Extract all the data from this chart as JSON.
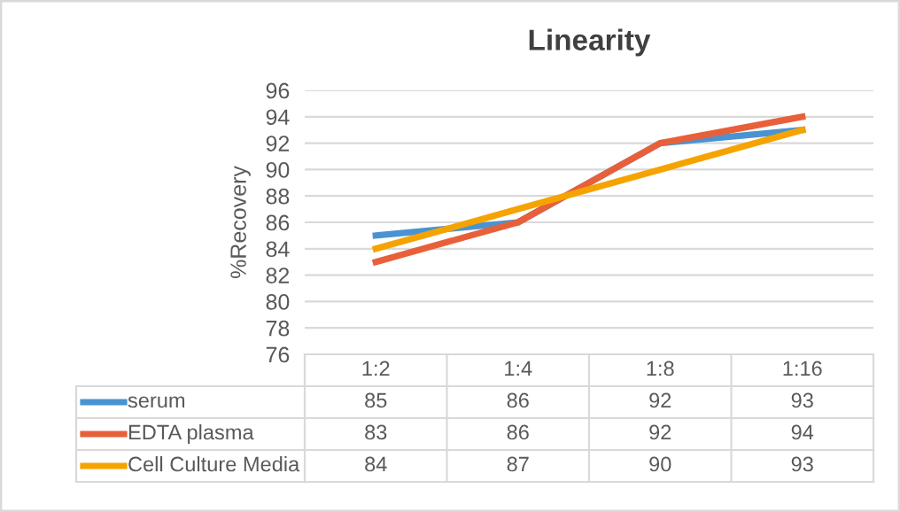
{
  "chart_data": {
    "type": "line",
    "title": "Linearity",
    "ylabel": "%Recovery",
    "categories": [
      "1:2",
      "1:4",
      "1:8",
      "1:16"
    ],
    "series": [
      {
        "name": "serum",
        "color": "#4a93d2",
        "values": [
          85,
          86,
          92,
          93
        ]
      },
      {
        "name": "EDTA plasma",
        "color": "#e8603a",
        "values": [
          83,
          86,
          92,
          94
        ]
      },
      {
        "name": "Cell Culture Media",
        "color": "#f5a300",
        "values": [
          84,
          87,
          90,
          93
        ]
      }
    ],
    "ylim": [
      76,
      96
    ],
    "yticks": [
      76,
      78,
      80,
      82,
      84,
      86,
      88,
      90,
      92,
      94,
      96
    ],
    "grid": "y",
    "legend": "bottom",
    "data_labels": true,
    "marker": "none",
    "line_style": "solid"
  }
}
